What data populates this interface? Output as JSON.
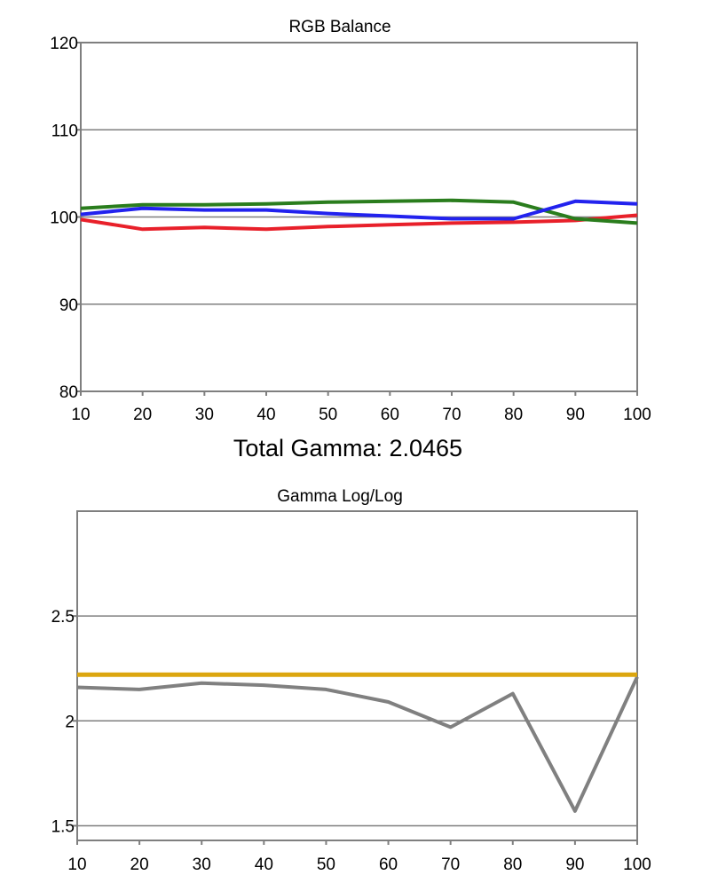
{
  "chart_data": [
    {
      "type": "line",
      "title": "RGB Balance",
      "xlabel": "",
      "ylabel": "",
      "x": [
        10,
        20,
        30,
        40,
        50,
        60,
        70,
        80,
        90,
        100
      ],
      "ylim": [
        80,
        120
      ],
      "yticks": [
        80,
        90,
        100,
        110,
        120
      ],
      "grid": true,
      "series": [
        {
          "color": "#e8202a",
          "values": [
            99.7,
            98.6,
            98.8,
            98.6,
            98.9,
            99.1,
            99.3,
            99.4,
            99.6,
            100.2
          ]
        },
        {
          "color": "#2a7d1d",
          "values": [
            101.0,
            101.4,
            101.4,
            101.5,
            101.7,
            101.8,
            101.9,
            101.7,
            99.8,
            99.3
          ]
        },
        {
          "color": "#2222ee",
          "values": [
            100.3,
            101.0,
            100.8,
            100.8,
            100.4,
            100.1,
            99.8,
            99.8,
            101.8,
            101.5
          ]
        }
      ]
    },
    {
      "type": "line",
      "title": "Gamma Log/Log",
      "xlabel": "",
      "ylabel": "",
      "x": [
        10,
        20,
        30,
        40,
        50,
        60,
        70,
        80,
        90,
        100
      ],
      "ylim": [
        1.43,
        3.0
      ],
      "yticks": [
        1.5,
        2,
        2.5
      ],
      "grid": true,
      "series": [
        {
          "color": "#808080",
          "values": [
            2.16,
            2.15,
            2.18,
            2.17,
            2.15,
            2.09,
            1.97,
            2.13,
            1.57,
            2.21
          ]
        },
        {
          "color": "#dca60f",
          "values": [
            2.22,
            2.22,
            2.22,
            2.22,
            2.22,
            2.22,
            2.22,
            2.22,
            2.22,
            2.22
          ]
        }
      ]
    }
  ],
  "summary": {
    "total_gamma": "Total Gamma: 2.0465"
  }
}
